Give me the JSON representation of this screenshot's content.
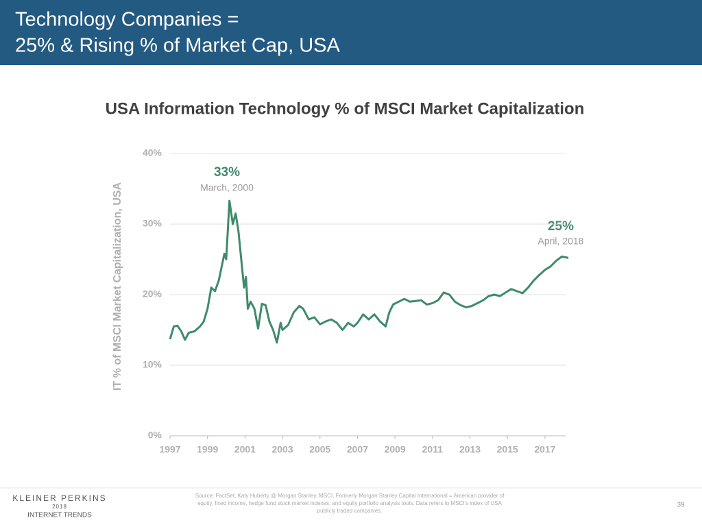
{
  "header": {
    "title_lines": [
      "Technology Companies =",
      "25% & Rising % of Market Cap, USA"
    ]
  },
  "chart_data": {
    "type": "line",
    "title": "USA Information Technology % of MSCI Market Capitalization",
    "y_label": "IT % of MSCI Market Capitalization, USA",
    "color": "#3f8a6c",
    "x": [
      1997.0,
      1997.2,
      1997.4,
      1997.6,
      1997.8,
      1998.0,
      1998.3,
      1998.6,
      1998.8,
      1999.0,
      1999.2,
      1999.4,
      1999.6,
      1999.9,
      2000.0,
      2000.1,
      2000.17,
      2000.35,
      2000.5,
      2000.65,
      2000.8,
      2000.95,
      2001.05,
      2001.15,
      2001.3,
      2001.5,
      2001.7,
      2001.9,
      2002.1,
      2002.3,
      2002.5,
      2002.7,
      2002.9,
      2003.0,
      2003.3,
      2003.6,
      2003.9,
      2004.1,
      2004.4,
      2004.7,
      2005.0,
      2005.3,
      2005.6,
      2005.9,
      2006.2,
      2006.5,
      2006.8,
      2007.0,
      2007.3,
      2007.6,
      2007.9,
      2008.2,
      2008.5,
      2008.7,
      2008.9,
      2009.2,
      2009.5,
      2009.8,
      2010.1,
      2010.4,
      2010.7,
      2011.0,
      2011.3,
      2011.6,
      2011.9,
      2012.2,
      2012.5,
      2012.8,
      2013.1,
      2013.4,
      2013.7,
      2014.0,
      2014.3,
      2014.6,
      2014.9,
      2015.2,
      2015.5,
      2015.8,
      2016.1,
      2016.4,
      2016.7,
      2017.0,
      2017.3,
      2017.6,
      2017.9,
      2018.25
    ],
    "values": [
      13.7,
      15.5,
      15.6,
      14.8,
      13.6,
      14.6,
      14.8,
      15.5,
      16.2,
      18.0,
      21.0,
      20.5,
      22.0,
      25.8,
      25.0,
      30.0,
      33.3,
      30.0,
      31.5,
      29.0,
      25.0,
      21.0,
      22.5,
      18.0,
      19.0,
      18.0,
      15.2,
      18.7,
      18.5,
      16.2,
      15.0,
      13.2,
      16.0,
      15.0,
      15.7,
      17.5,
      18.4,
      18.0,
      16.5,
      16.8,
      15.8,
      16.2,
      16.5,
      16.0,
      15.0,
      16.0,
      15.5,
      16.0,
      17.2,
      16.5,
      17.2,
      16.2,
      15.5,
      17.5,
      18.6,
      19.0,
      19.4,
      19.0,
      19.1,
      19.2,
      18.6,
      18.8,
      19.2,
      20.3,
      20.0,
      19.0,
      18.5,
      18.2,
      18.4,
      18.8,
      19.2,
      19.8,
      20.0,
      19.8,
      20.3,
      20.8,
      20.5,
      20.2,
      21.0,
      22.0,
      22.8,
      23.5,
      24.0,
      24.8,
      25.4,
      25.2
    ],
    "xlim": [
      1997,
      2018.1
    ],
    "xticks": [
      1997,
      1999,
      2001,
      2003,
      2005,
      2007,
      2009,
      2011,
      2013,
      2015,
      2017
    ],
    "ylim": [
      0,
      40
    ],
    "yticks": [
      {
        "value": 0,
        "label": "0%"
      },
      {
        "value": 10,
        "label": "10%"
      },
      {
        "value": 20,
        "label": "20%"
      },
      {
        "value": 30,
        "label": "30%"
      },
      {
        "value": 40,
        "label": "40%"
      }
    ],
    "grid": true,
    "annotations": [
      {
        "label": "33%",
        "note": "March, 2000"
      },
      {
        "label": "25%",
        "note": "April, 2018"
      }
    ]
  },
  "footer": {
    "logo_lines": [
      "KLEINER PERKINS",
      "2018",
      "INTERNET TRENDS"
    ],
    "source": "Source: FactSet, Katy Huberty @ Morgan Stanley. MSCI, Formerly Morgan Stanley Capital International = American provider of equity, fixed income, hedge fund stock market indexes, and equity portfolio analysis tools. Data refers to MSCI's index of USA publicly traded companies.",
    "page": "39"
  }
}
